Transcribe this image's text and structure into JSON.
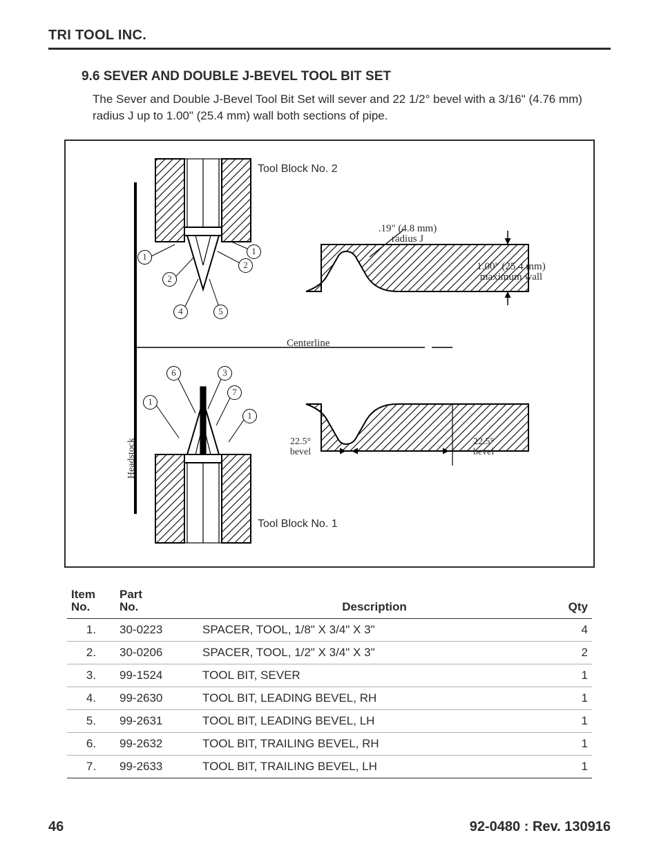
{
  "header": {
    "company": "TRI TOOL INC."
  },
  "section": {
    "number": "9.6",
    "title": "SEVER AND DOUBLE J-BEVEL TOOL BIT SET",
    "description": "The Sever and Double J-Bevel Tool Bit Set will sever and 22 1/2° bevel with a 3/16\" (4.76 mm) radius J up to 1.00\" (25.4 mm) wall both sections of pipe."
  },
  "figure": {
    "block_top_label": "Tool Block No. 2",
    "block_bottom_label": "Tool Block No. 1",
    "centerline_label": "Centerline",
    "radius_label": ".19\" (4.8 mm) radius J",
    "max_wall_label": "1.00\" (25.4 mm) maximum wall",
    "bevel_left_label": "22.5° bevel",
    "bevel_right_label": "22.5° bevel",
    "headstock_label": "Headstock",
    "callouts": [
      "1",
      "1",
      "2",
      "2",
      "4",
      "5",
      "6",
      "3",
      "1",
      "7",
      "1"
    ],
    "line_color": "#000000",
    "hatch_color": "#000000",
    "background_color": "#ffffff",
    "border_width": 2
  },
  "table": {
    "headers": {
      "item": "Item No.",
      "part": "Part No.",
      "desc": "Description",
      "qty": "Qty"
    },
    "rows": [
      {
        "item": "1.",
        "part": "30-0223",
        "desc": "SPACER, TOOL, 1/8\" X 3/4\" X 3\"",
        "qty": "4"
      },
      {
        "item": "2.",
        "part": "30-0206",
        "desc": "SPACER, TOOL, 1/2\" X 3/4\" X 3\"",
        "qty": "2"
      },
      {
        "item": "3.",
        "part": "99-1524",
        "desc": "TOOL BIT, SEVER",
        "qty": "1"
      },
      {
        "item": "4.",
        "part": "99-2630",
        "desc": "TOOL BIT, LEADING BEVEL, RH",
        "qty": "1"
      },
      {
        "item": "5.",
        "part": "99-2631",
        "desc": "TOOL BIT, LEADING BEVEL, LH",
        "qty": "1"
      },
      {
        "item": "6.",
        "part": "99-2632",
        "desc": "TOOL BIT, TRAILING BEVEL, RH",
        "qty": "1"
      },
      {
        "item": "7.",
        "part": "99-2633",
        "desc": "TOOL BIT, TRAILING BEVEL, LH",
        "qty": "1"
      }
    ]
  },
  "footer": {
    "page": "46",
    "doc": "92-0480 : Rev. 130916"
  }
}
